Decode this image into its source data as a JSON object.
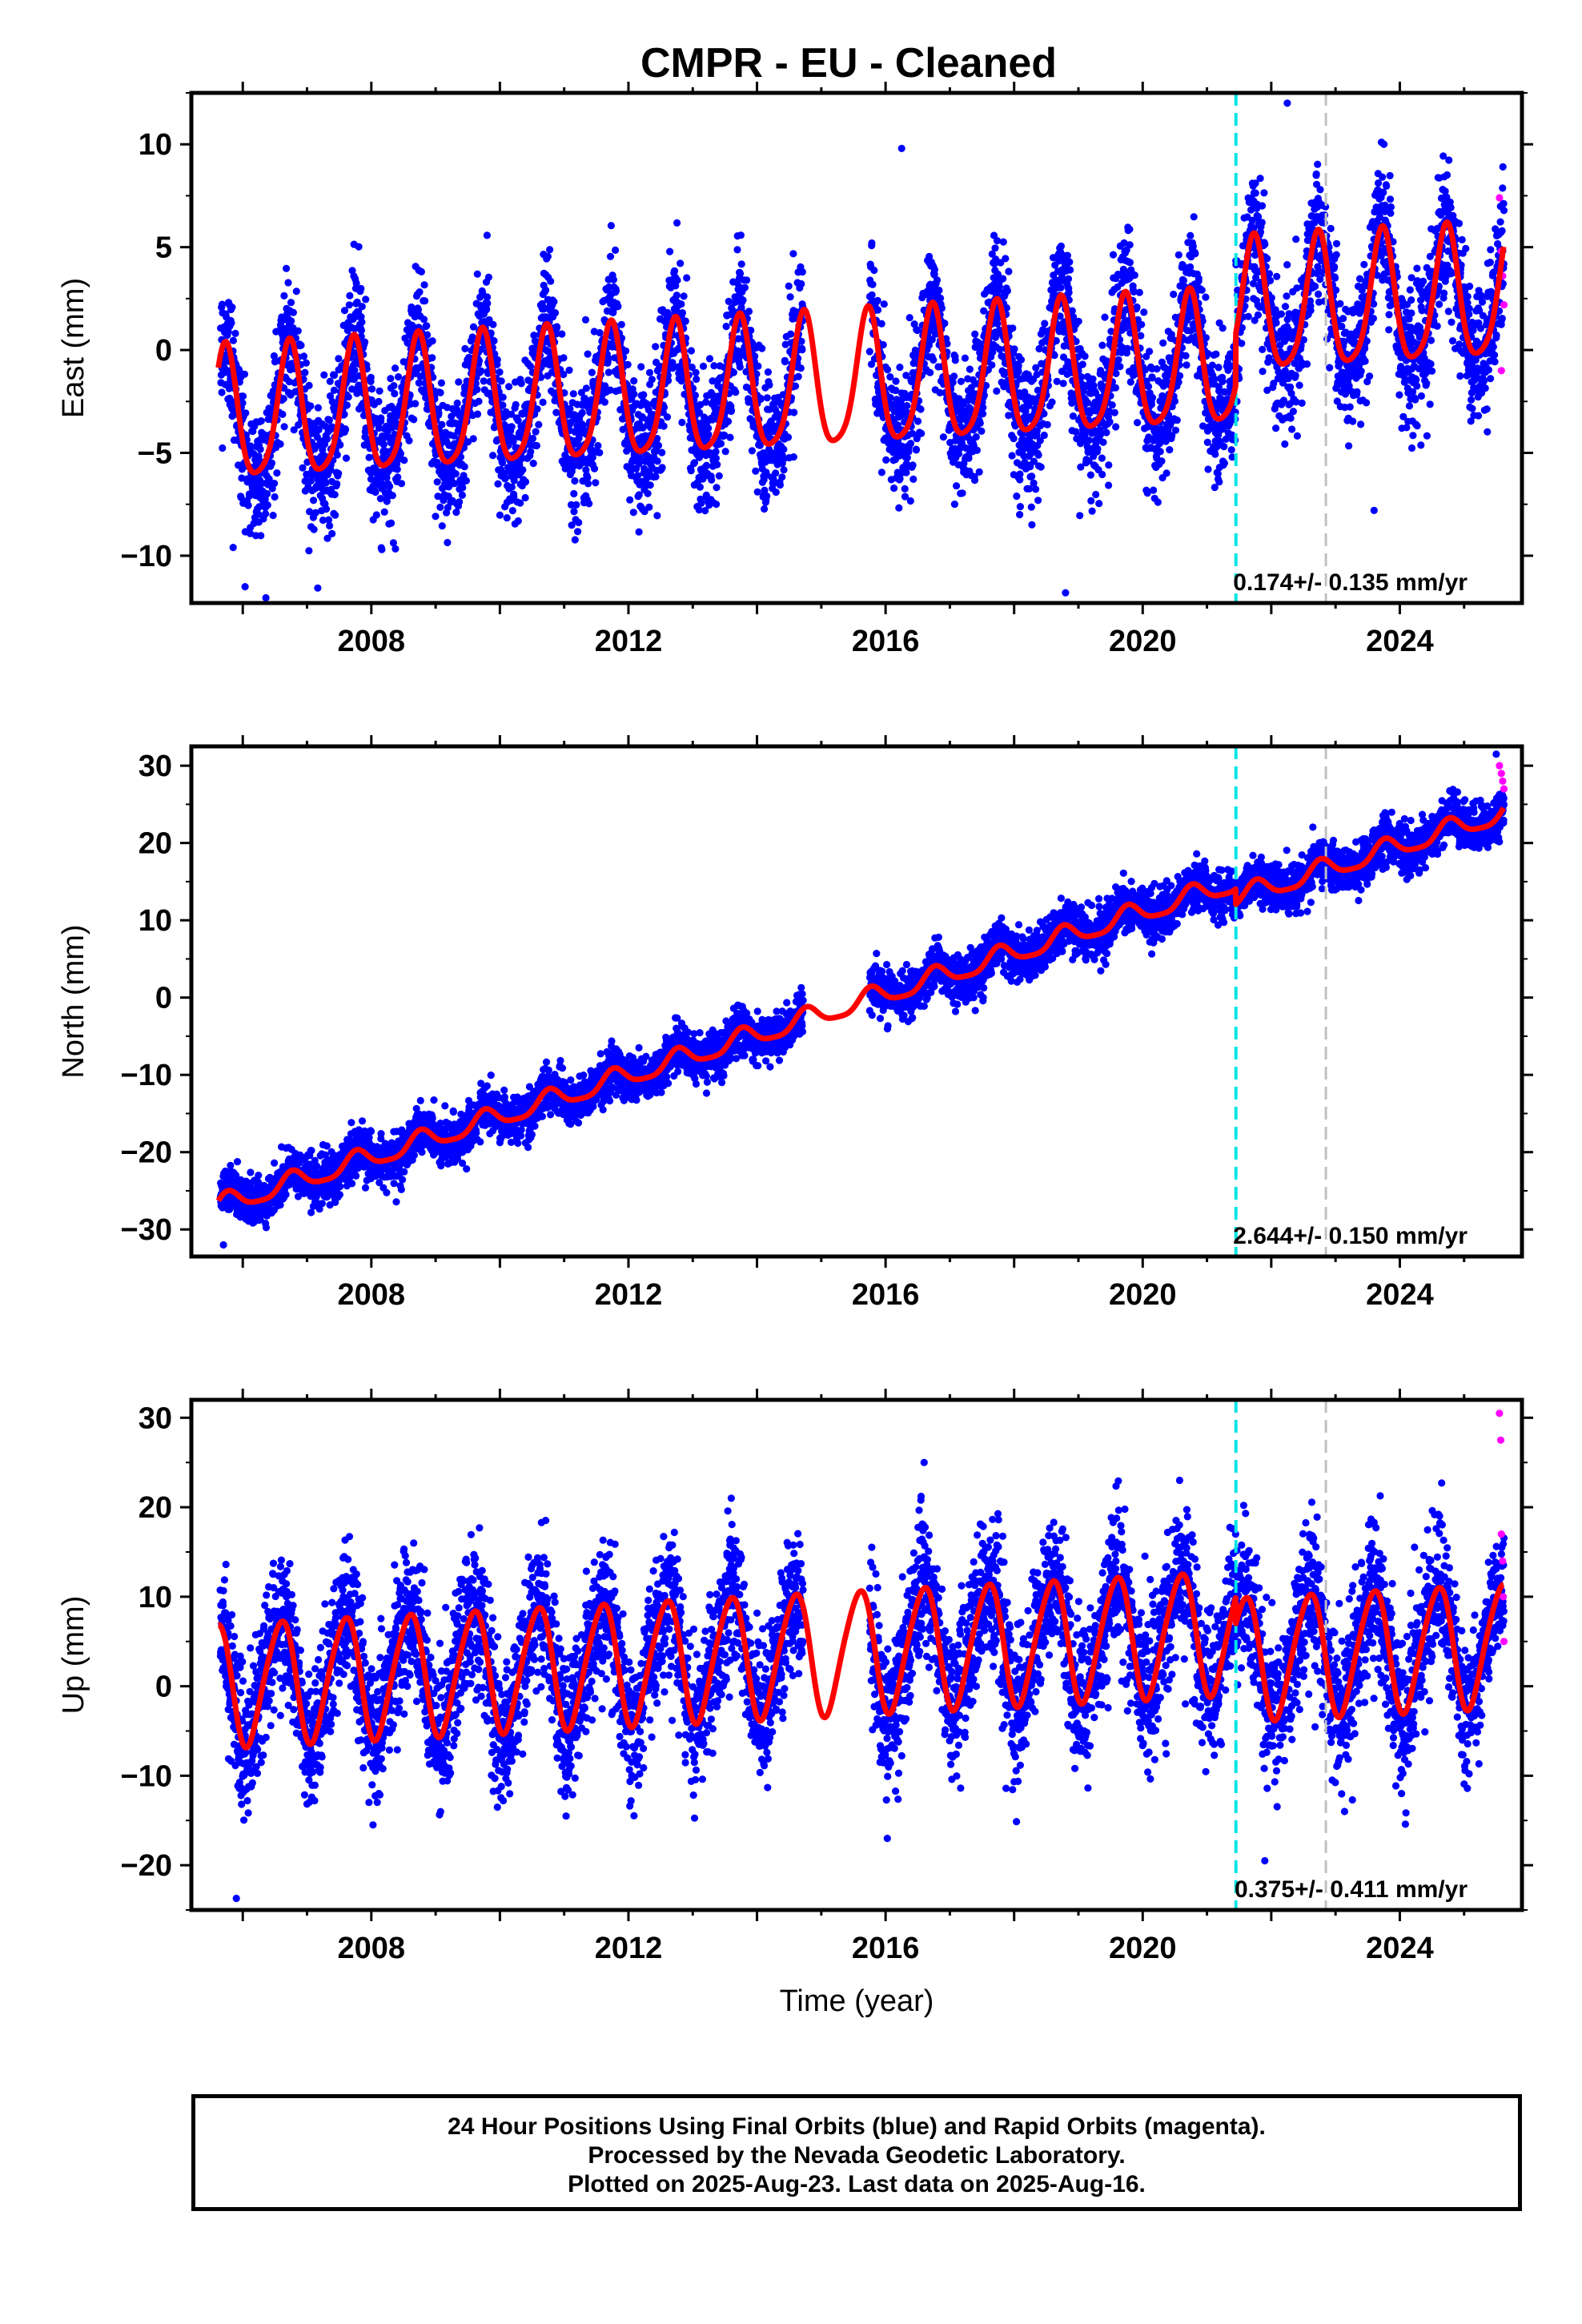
{
  "title": "CMPR  - EU - Cleaned",
  "colors": {
    "final_orbits": "#0000ff",
    "rapid_orbits": "#ff00ff",
    "model": "#ff0000",
    "event_line_1": "#00e5e5",
    "event_line_2": "#c0c0c0"
  },
  "footer": {
    "line1": "24 Hour Positions Using Final Orbits (blue) and Rapid Orbits (magenta).",
    "line2": "Processed by the Nevada Geodetic Laboratory.",
    "line3": "Plotted on 2025-Aug-23. Last data on 2025-Aug-16."
  },
  "chart_data": [
    {
      "type": "scatter",
      "name": "east",
      "ylabel": "East (mm)",
      "xlabel": "",
      "xlim": [
        2005.2,
        2025.9
      ],
      "ylim": [
        -12.3,
        12.5
      ],
      "yticks": [
        -10,
        -5,
        0,
        5,
        10
      ],
      "xticks": [
        2008,
        2012,
        2016,
        2020,
        2024
      ],
      "rate_text": "0.174+/- 0.135 mm/yr",
      "event_lines": [
        2021.45,
        2022.85
      ],
      "data_start": 2005.65,
      "data_end": 2025.62,
      "gap": [
        2014.72,
        2015.75
      ],
      "model": {
        "offset": -3.4,
        "rate": 0.174,
        "t0": 2005.65,
        "annual_amp": 3.2,
        "annual_phase": 1.1,
        "semiannual_amp": 0.6,
        "semiannual_phase": 0.4,
        "steps": [
          {
            "t": 2021.45,
            "dy": 2.5
          }
        ]
      },
      "scatter_sd": 1.6,
      "rapid_points": [
        [
          2025.55,
          7.4
        ],
        [
          2025.58,
          4.8
        ],
        [
          2025.6,
          3.6
        ],
        [
          2025.62,
          2.2
        ],
        [
          2025.58,
          -1.0
        ]
      ],
      "outliers": [
        [
          2016.25,
          9.8
        ],
        [
          2018.8,
          -11.8
        ],
        [
          2022.25,
          12.0
        ],
        [
          2023.6,
          -7.8
        ],
        [
          2005.85,
          -9.6
        ]
      ]
    },
    {
      "type": "scatter",
      "name": "north",
      "ylabel": "North (mm)",
      "xlabel": "",
      "xlim": [
        2005.2,
        2025.9
      ],
      "ylim": [
        -33.5,
        32.5
      ],
      "yticks": [
        -30,
        -20,
        -10,
        0,
        10,
        20,
        30
      ],
      "xticks": [
        2008,
        2012,
        2016,
        2020,
        2024
      ],
      "rate_text": "2.644+/- 0.150 mm/yr",
      "event_lines": [
        2021.45,
        2022.85
      ],
      "data_start": 2005.65,
      "data_end": 2025.62,
      "gap": [
        2014.72,
        2015.75
      ],
      "model": {
        "offset": -26.9,
        "rate": 2.644,
        "t0": 2005.65,
        "annual_amp": 1.3,
        "annual_phase": 0.8,
        "semiannual_amp": 0.3,
        "semiannual_phase": 0.2,
        "steps": [
          {
            "t": 2015.75,
            "dy": 0.0
          },
          {
            "t": 2021.45,
            "dy": -2.0
          }
        ]
      },
      "scatter_sd": 1.5,
      "rapid_points": [
        [
          2025.55,
          30.0
        ],
        [
          2025.58,
          29.0
        ],
        [
          2025.6,
          28.0
        ],
        [
          2025.62,
          27.0
        ]
      ],
      "outliers": [
        [
          2005.7,
          -32.0
        ],
        [
          2025.5,
          31.5
        ]
      ]
    },
    {
      "type": "scatter",
      "name": "up",
      "ylabel": "Up (mm)",
      "xlabel": "Time (year)",
      "xlim": [
        2005.2,
        2025.9
      ],
      "ylim": [
        -25,
        32
      ],
      "yticks": [
        -20,
        -10,
        0,
        10,
        20,
        30
      ],
      "xticks": [
        2008,
        2012,
        2016,
        2020,
        2024
      ],
      "rate_text": "0.375+/- 0.411 mm/yr",
      "event_lines": [
        2021.45,
        2022.85
      ],
      "data_start": 2005.65,
      "data_end": 2025.62,
      "gap": [
        2014.72,
        2015.75
      ],
      "model": {
        "offset": 0.2,
        "rate": 0.375,
        "t0": 2005.65,
        "annual_amp": 6.8,
        "annual_phase": 2.0,
        "semiannual_amp": 0.8,
        "semiannual_phase": 0.5,
        "steps": [
          {
            "t": 2021.45,
            "dy": -3.0
          }
        ]
      },
      "scatter_sd": 4.0,
      "rapid_points": [
        [
          2025.55,
          30.5
        ],
        [
          2025.57,
          27.5
        ],
        [
          2025.58,
          17.0
        ],
        [
          2025.6,
          14.0
        ],
        [
          2025.61,
          10.0
        ],
        [
          2025.62,
          5.0
        ]
      ],
      "outliers": [
        [
          2016.6,
          25.0
        ],
        [
          2005.9,
          -23.7
        ],
        [
          2013.6,
          21.0
        ],
        [
          2021.9,
          -19.5
        ]
      ]
    }
  ]
}
